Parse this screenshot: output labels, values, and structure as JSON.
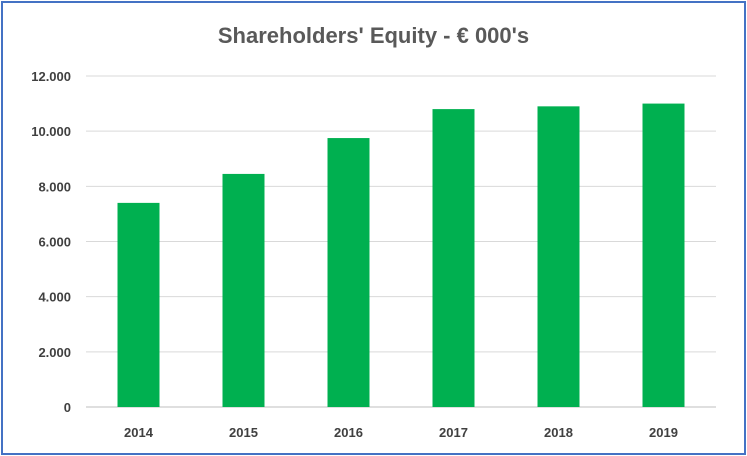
{
  "chart_data": {
    "type": "bar",
    "title": "Shareholders' Equity - € 000's",
    "xlabel": "",
    "ylabel": "",
    "categories": [
      "2014",
      "2015",
      "2016",
      "2017",
      "2018",
      "2019"
    ],
    "values": [
      7400,
      8450,
      9750,
      10800,
      10900,
      11000
    ],
    "ylim": [
      0,
      12000
    ],
    "yticks": [
      "0",
      "2.000",
      "4.000",
      "6.000",
      "8.000",
      "10.000",
      "12.000"
    ],
    "ytick_values": [
      0,
      2000,
      4000,
      6000,
      8000,
      10000,
      12000
    ],
    "grid": true,
    "legend": "none",
    "colors": {
      "bar": "#00B050",
      "grid": "#D9D9D9",
      "frame": "#4472C4"
    }
  }
}
